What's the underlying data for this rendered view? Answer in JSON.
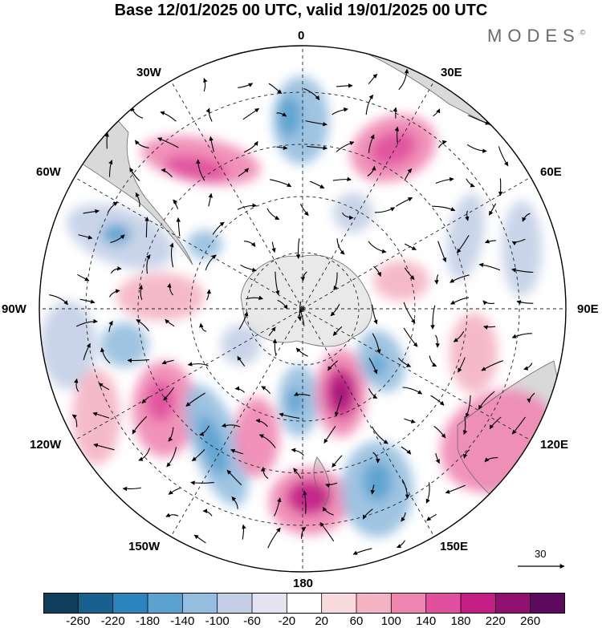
{
  "title": "Base 12/01/2025 00 UTC, valid 19/01/2025 00 UTC",
  "brand": "MODES",
  "brand_mark": "©",
  "longitude_labels": {
    "lon_0": "0",
    "lon_30e": "30E",
    "lon_60e": "60E",
    "lon_90e": "90E",
    "lon_120e": "120E",
    "lon_150e": "150E",
    "lon_180": "180",
    "lon_150w": "150W",
    "lon_120w": "120W",
    "lon_90w": "90W",
    "lon_60w": "60W",
    "lon_30w": "30W"
  },
  "reference_vector": {
    "value": "30",
    "icon": "arrow-right-icon"
  },
  "colorbar": {
    "labels": [
      "-260",
      "-220",
      "-180",
      "-140",
      "-100",
      "-60",
      "-20",
      "20",
      "60",
      "100",
      "140",
      "180",
      "220",
      "260"
    ],
    "colors": [
      "#0e3e5c",
      "#17608f",
      "#2b84bd",
      "#5aa2cf",
      "#94bedf",
      "#c3cfe7",
      "#e4e3f1",
      "#ffffff",
      "#f8d9de",
      "#f4b3c3",
      "#ef86b1",
      "#e0509e",
      "#c31f87",
      "#93116e",
      "#5b0a5e"
    ]
  },
  "field_colors": {
    "land": "#d9d9d9",
    "antarctica": "#e9e9e9",
    "coast": "#6b6b6b",
    "grid": "#222222"
  }
}
